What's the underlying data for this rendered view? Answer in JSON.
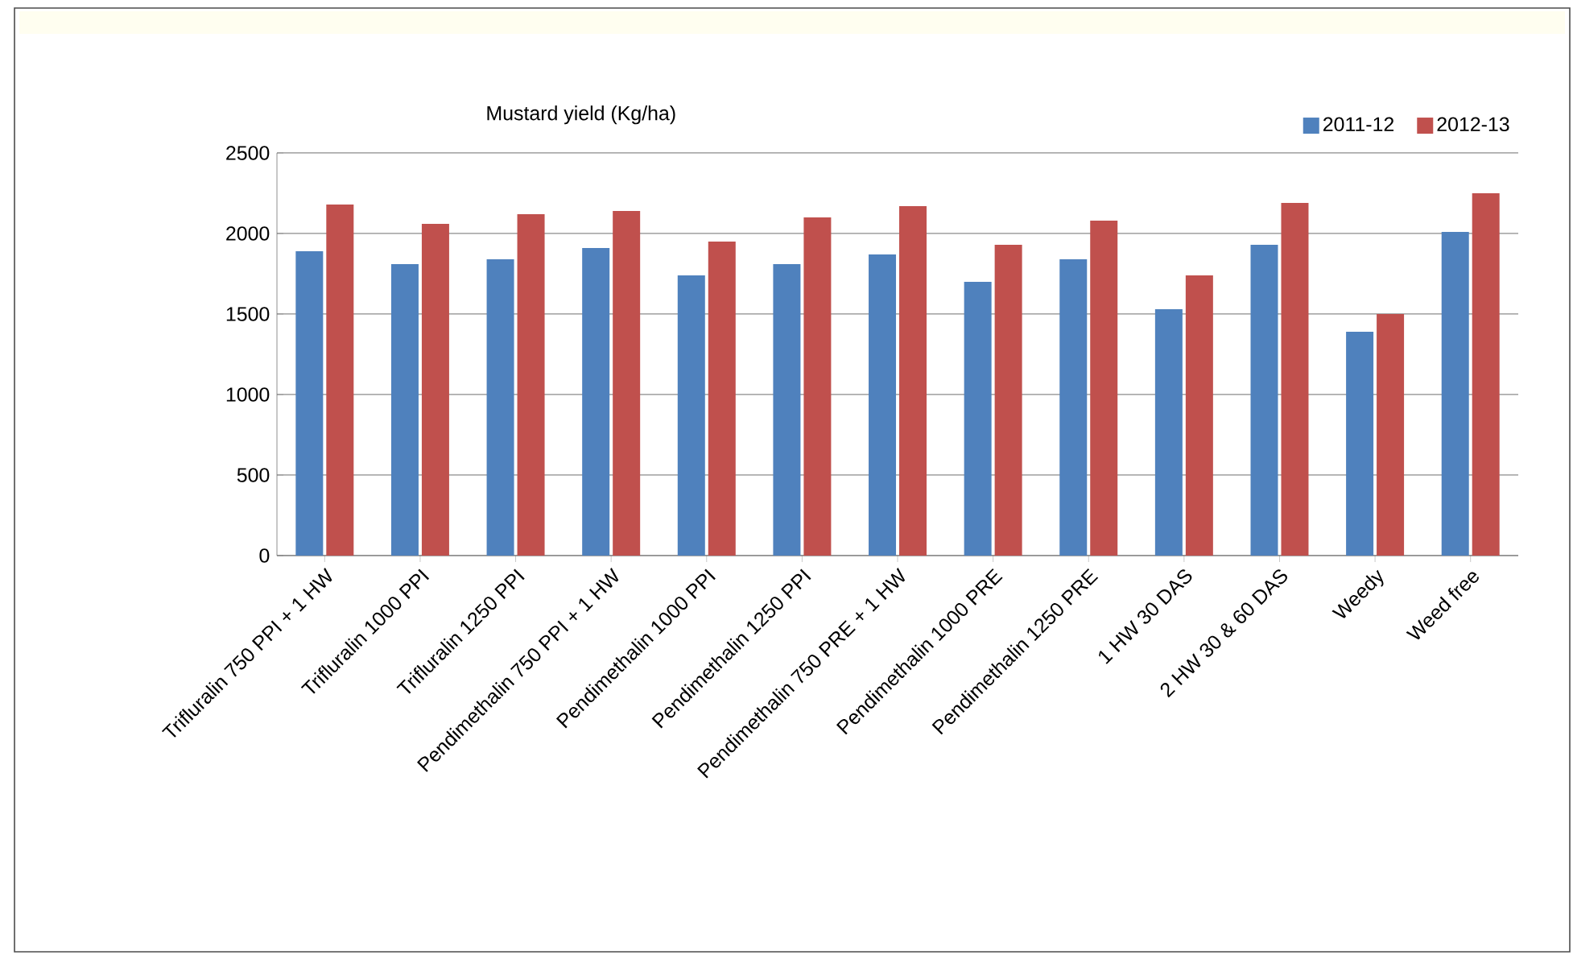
{
  "chart_data": {
    "type": "bar",
    "title": "Mustard yield  (Kg/ha)",
    "categories": [
      "Trifluralin 750 PPI + 1 HW",
      "Trifluralin 1000 PPI",
      "Trifluralin 1250 PPI",
      "Pendimethalin 750 PPI + 1 HW",
      "Pendimethalin 1000 PPI",
      "Pendimethalin 1250 PPI",
      "Pendimethalin 750 PRE + 1 HW",
      "Pendimethalin 1000 PRE",
      "Pendimethalin 1250 PRE",
      "1 HW 30 DAS",
      "2 HW 30 & 60 DAS",
      "Weedy",
      "Weed free"
    ],
    "series": [
      {
        "name": "2011-12",
        "color": "#4f81bd",
        "values": [
          1890,
          1810,
          1840,
          1910,
          1740,
          1810,
          1870,
          1700,
          1840,
          1530,
          1930,
          1390,
          2010
        ]
      },
      {
        "name": "2012-13",
        "color": "#c0504d",
        "values": [
          2180,
          2060,
          2120,
          2140,
          1950,
          2100,
          2170,
          1930,
          2080,
          1740,
          2190,
          1500,
          2250
        ]
      }
    ],
    "ylim": [
      0,
      2500
    ],
    "yticks": [
      0,
      500,
      1000,
      1500,
      2000,
      2500
    ],
    "grid": "y",
    "legend": "top right"
  }
}
